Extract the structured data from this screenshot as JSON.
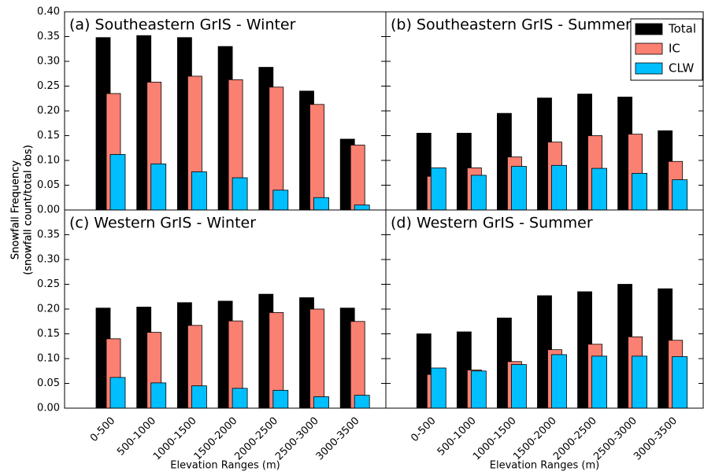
{
  "chart_data": [
    {
      "type": "bar",
      "title": "(a) Southeastern GrIS - Winter",
      "ylabel": [
        "Snowfall Frequency",
        "(snowfall count/total obs)"
      ],
      "ylim": [
        0,
        0.4
      ],
      "yticks": [
        {
          "value": 0,
          "label": "0.00"
        },
        {
          "value": 0.05,
          "label": "0.05"
        },
        {
          "value": 0.1,
          "label": "0.10"
        },
        {
          "value": 0.15,
          "label": "0.15"
        },
        {
          "value": 0.2,
          "label": "0.20"
        },
        {
          "value": 0.25,
          "label": "0.25"
        },
        {
          "value": 0.3,
          "label": "0.30"
        },
        {
          "value": 0.35,
          "label": "0.35"
        },
        {
          "value": 0.4,
          "label": "0.40"
        }
      ],
      "series": [
        {
          "color": "#000000",
          "values": [
            0.348,
            0.352,
            0.348,
            0.33,
            0.288,
            0.24,
            0.143
          ]
        },
        {
          "color": "#fa8072",
          "values": [
            0.235,
            0.258,
            0.27,
            0.263,
            0.248,
            0.213,
            0.131
          ]
        },
        {
          "color": "#00bfff",
          "values": [
            0.112,
            0.093,
            0.077,
            0.065,
            0.04,
            0.025,
            0.01
          ]
        }
      ]
    },
    {
      "type": "bar",
      "title": "(b) Southeastern GrIS - Summer",
      "ylim": [
        0,
        0.4
      ],
      "yticks": [
        0,
        0.05,
        0.1,
        0.15,
        0.2,
        0.25,
        0.3,
        0.35,
        0.4
      ],
      "legend": "upper right",
      "series": [
        {
          "name": "Total",
          "color": "#000000",
          "values": [
            0.155,
            0.155,
            0.195,
            0.226,
            0.234,
            0.228,
            0.16
          ]
        },
        {
          "name": "IC",
          "color": "#fa8072",
          "values": [
            0.068,
            0.085,
            0.107,
            0.137,
            0.15,
            0.153,
            0.098
          ]
        },
        {
          "name": "CLW",
          "color": "#00bfff",
          "values": [
            0.085,
            0.07,
            0.088,
            0.09,
            0.084,
            0.074,
            0.061
          ]
        }
      ]
    },
    {
      "type": "bar",
      "title": "(c) Western GrIS - Winter",
      "ylabel": [
        "Snowfall Frequency",
        "(snowfall count/total obs)"
      ],
      "xlabel": "Elevation Ranges (m)",
      "categories": [
        "0-500",
        "500-1000",
        "1000-1500",
        "1500-2000",
        "2000-2500",
        "2500-3000",
        "3000-3500"
      ],
      "ylim": [
        0,
        0.4
      ],
      "yticks": [
        {
          "value": 0,
          "label": "0.00"
        },
        {
          "value": 0.05,
          "label": "0.05"
        },
        {
          "value": 0.1,
          "label": "0.10"
        },
        {
          "value": 0.15,
          "label": "0.15"
        },
        {
          "value": 0.2,
          "label": "0.20"
        },
        {
          "value": 0.25,
          "label": "0.25"
        },
        {
          "value": 0.3,
          "label": "0.30"
        },
        {
          "value": 0.35,
          "label": "0.35"
        }
      ],
      "series": [
        {
          "color": "#000000",
          "values": [
            0.202,
            0.204,
            0.213,
            0.216,
            0.23,
            0.223,
            0.202
          ]
        },
        {
          "color": "#fa8072",
          "values": [
            0.14,
            0.153,
            0.167,
            0.176,
            0.193,
            0.2,
            0.175
          ]
        },
        {
          "color": "#00bfff",
          "values": [
            0.062,
            0.051,
            0.045,
            0.04,
            0.036,
            0.023,
            0.026
          ]
        }
      ]
    },
    {
      "type": "bar",
      "title": "(d) Western GrIS - Summer",
      "xlabel": "Elevation Ranges (m)",
      "categories": [
        "0-500",
        "500-1000",
        "1000-1500",
        "1500-2000",
        "2000-2500",
        "2500-3000",
        "3000-3500"
      ],
      "ylim": [
        0,
        0.4
      ],
      "yticks": [
        0,
        0.05,
        0.1,
        0.15,
        0.2,
        0.25,
        0.3,
        0.35
      ],
      "series": [
        {
          "color": "#000000",
          "values": [
            0.15,
            0.154,
            0.182,
            0.227,
            0.235,
            0.25,
            0.241
          ]
        },
        {
          "color": "#fa8072",
          "values": [
            0.068,
            0.077,
            0.094,
            0.118,
            0.129,
            0.144,
            0.137
          ]
        },
        {
          "color": "#00bfff",
          "values": [
            0.081,
            0.075,
            0.088,
            0.108,
            0.105,
            0.105,
            0.104
          ]
        }
      ]
    }
  ]
}
